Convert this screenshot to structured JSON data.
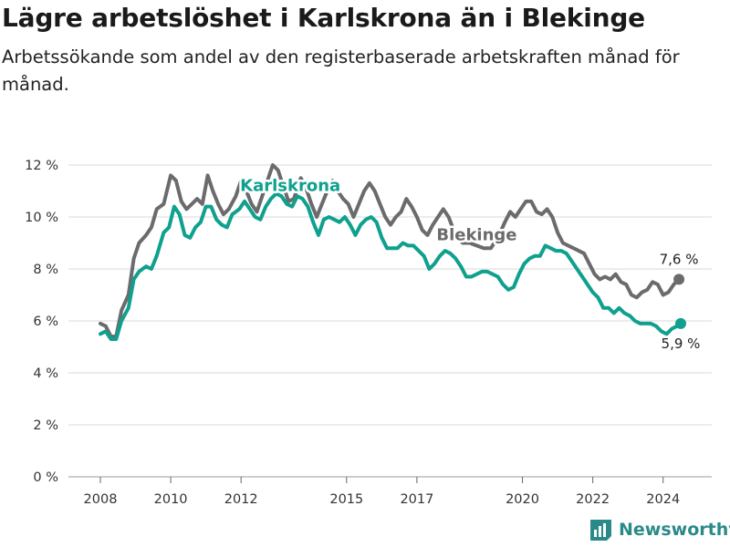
{
  "title": "Lägre arbetslöshet i Karlskrona än i Blekinge",
  "subtitle": "Arbetssökande som andel av den registerbaserade arbetskraften månad för månad.",
  "brand": {
    "name": "Newsworthy"
  },
  "colors": {
    "karlskrona": "#0fa08e",
    "blekinge": "#6b6b6e",
    "grid": "#d9d9d9"
  },
  "chart_data": {
    "type": "line",
    "title": "Lägre arbetslöshet i Karlskrona än i Blekinge",
    "subtitle": "Arbetssökande som andel av den registerbaserade arbetskraften månad för månad.",
    "xlabel": "",
    "ylabel": "",
    "y_range": [
      0,
      12
    ],
    "y_ticks": [
      {
        "value": 0,
        "label": "0 %"
      },
      {
        "value": 2,
        "label": "2 %"
      },
      {
        "value": 4,
        "label": "4 %"
      },
      {
        "value": 6,
        "label": "6 %"
      },
      {
        "value": 8,
        "label": "8 %"
      },
      {
        "value": 10,
        "label": "10 %"
      },
      {
        "value": 12,
        "label": "12 %"
      }
    ],
    "x_range": [
      2008.0,
      2024.5
    ],
    "x_ticks": [
      {
        "value": 2008,
        "label": "2008"
      },
      {
        "value": 2010,
        "label": "2010"
      },
      {
        "value": 2012,
        "label": "2012"
      },
      {
        "value": 2015,
        "label": "2015"
      },
      {
        "value": 2017,
        "label": "2017"
      },
      {
        "value": 2020,
        "label": "2020"
      },
      {
        "value": 2022,
        "label": "2022"
      },
      {
        "value": 2024,
        "label": "2024"
      }
    ],
    "grid": true,
    "series": [
      {
        "name": "Blekinge",
        "color": "#6b6b6e",
        "end_label": "7,6 %",
        "points": [
          [
            2008.0,
            5.9
          ],
          [
            2008.15,
            5.8
          ],
          [
            2008.3,
            5.4
          ],
          [
            2008.45,
            5.4
          ],
          [
            2008.6,
            6.4
          ],
          [
            2008.8,
            7.0
          ],
          [
            2008.95,
            8.4
          ],
          [
            2009.1,
            9.0
          ],
          [
            2009.3,
            9.3
          ],
          [
            2009.45,
            9.6
          ],
          [
            2009.6,
            10.3
          ],
          [
            2009.8,
            10.5
          ],
          [
            2010.0,
            11.6
          ],
          [
            2010.15,
            11.4
          ],
          [
            2010.3,
            10.6
          ],
          [
            2010.45,
            10.3
          ],
          [
            2010.6,
            10.5
          ],
          [
            2010.75,
            10.7
          ],
          [
            2010.9,
            10.5
          ],
          [
            2011.05,
            11.6
          ],
          [
            2011.2,
            11.0
          ],
          [
            2011.35,
            10.5
          ],
          [
            2011.5,
            10.1
          ],
          [
            2011.65,
            10.3
          ],
          [
            2011.85,
            10.8
          ],
          [
            2012.0,
            11.4
          ],
          [
            2012.15,
            11.0
          ],
          [
            2012.3,
            10.5
          ],
          [
            2012.45,
            10.2
          ],
          [
            2012.6,
            10.8
          ],
          [
            2012.75,
            11.4
          ],
          [
            2012.9,
            12.0
          ],
          [
            2013.05,
            11.8
          ],
          [
            2013.2,
            11.2
          ],
          [
            2013.35,
            10.6
          ],
          [
            2013.5,
            10.7
          ],
          [
            2013.7,
            11.5
          ],
          [
            2013.85,
            11.1
          ],
          [
            2014.0,
            10.5
          ],
          [
            2014.15,
            10.0
          ],
          [
            2014.3,
            10.5
          ],
          [
            2014.45,
            11.0
          ],
          [
            2014.6,
            11.4
          ],
          [
            2014.75,
            11.0
          ],
          [
            2014.9,
            10.7
          ],
          [
            2015.05,
            10.5
          ],
          [
            2015.2,
            10.0
          ],
          [
            2015.35,
            10.5
          ],
          [
            2015.5,
            11.0
          ],
          [
            2015.65,
            11.3
          ],
          [
            2015.8,
            11.0
          ],
          [
            2015.95,
            10.5
          ],
          [
            2016.1,
            10.0
          ],
          [
            2016.25,
            9.7
          ],
          [
            2016.4,
            10.0
          ],
          [
            2016.55,
            10.2
          ],
          [
            2016.7,
            10.7
          ],
          [
            2016.85,
            10.4
          ],
          [
            2017.0,
            10.0
          ],
          [
            2017.15,
            9.5
          ],
          [
            2017.3,
            9.3
          ],
          [
            2017.45,
            9.7
          ],
          [
            2017.6,
            10.0
          ],
          [
            2017.75,
            10.3
          ],
          [
            2017.9,
            10.0
          ],
          [
            2018.1,
            9.3
          ],
          [
            2018.3,
            9.0
          ],
          [
            2018.5,
            9.0
          ],
          [
            2018.7,
            8.9
          ],
          [
            2018.9,
            8.8
          ],
          [
            2019.1,
            8.8
          ],
          [
            2019.3,
            9.2
          ],
          [
            2019.5,
            9.8
          ],
          [
            2019.65,
            10.2
          ],
          [
            2019.8,
            10.0
          ],
          [
            2019.95,
            10.3
          ],
          [
            2020.1,
            10.6
          ],
          [
            2020.25,
            10.6
          ],
          [
            2020.4,
            10.2
          ],
          [
            2020.55,
            10.1
          ],
          [
            2020.7,
            10.3
          ],
          [
            2020.85,
            10.0
          ],
          [
            2021.0,
            9.4
          ],
          [
            2021.15,
            9.0
          ],
          [
            2021.3,
            8.9
          ],
          [
            2021.45,
            8.8
          ],
          [
            2021.6,
            8.7
          ],
          [
            2021.75,
            8.6
          ],
          [
            2021.9,
            8.2
          ],
          [
            2022.05,
            7.8
          ],
          [
            2022.2,
            7.6
          ],
          [
            2022.35,
            7.7
          ],
          [
            2022.5,
            7.6
          ],
          [
            2022.65,
            7.8
          ],
          [
            2022.8,
            7.5
          ],
          [
            2022.95,
            7.4
          ],
          [
            2023.1,
            7.0
          ],
          [
            2023.25,
            6.9
          ],
          [
            2023.4,
            7.1
          ],
          [
            2023.55,
            7.2
          ],
          [
            2023.7,
            7.5
          ],
          [
            2023.85,
            7.4
          ],
          [
            2024.0,
            7.0
          ],
          [
            2024.15,
            7.1
          ],
          [
            2024.3,
            7.4
          ],
          [
            2024.45,
            7.6
          ]
        ]
      },
      {
        "name": "Karlskrona",
        "color": "#0fa08e",
        "end_label": "5,9 %",
        "points": [
          [
            2008.0,
            5.5
          ],
          [
            2008.15,
            5.6
          ],
          [
            2008.3,
            5.3
          ],
          [
            2008.45,
            5.3
          ],
          [
            2008.6,
            6.0
          ],
          [
            2008.8,
            6.5
          ],
          [
            2008.95,
            7.6
          ],
          [
            2009.1,
            7.9
          ],
          [
            2009.3,
            8.1
          ],
          [
            2009.45,
            8.0
          ],
          [
            2009.6,
            8.5
          ],
          [
            2009.8,
            9.4
          ],
          [
            2009.95,
            9.6
          ],
          [
            2010.1,
            10.4
          ],
          [
            2010.25,
            10.1
          ],
          [
            2010.4,
            9.3
          ],
          [
            2010.55,
            9.2
          ],
          [
            2010.7,
            9.6
          ],
          [
            2010.85,
            9.8
          ],
          [
            2011.0,
            10.4
          ],
          [
            2011.15,
            10.4
          ],
          [
            2011.3,
            9.9
          ],
          [
            2011.45,
            9.7
          ],
          [
            2011.6,
            9.6
          ],
          [
            2011.75,
            10.1
          ],
          [
            2011.95,
            10.3
          ],
          [
            2012.1,
            10.6
          ],
          [
            2012.25,
            10.3
          ],
          [
            2012.4,
            10.0
          ],
          [
            2012.55,
            9.9
          ],
          [
            2012.7,
            10.4
          ],
          [
            2012.85,
            10.7
          ],
          [
            2013.0,
            10.9
          ],
          [
            2013.15,
            10.8
          ],
          [
            2013.3,
            10.5
          ],
          [
            2013.45,
            10.4
          ],
          [
            2013.6,
            10.8
          ],
          [
            2013.75,
            10.7
          ],
          [
            2013.9,
            10.4
          ],
          [
            2014.05,
            9.8
          ],
          [
            2014.2,
            9.3
          ],
          [
            2014.35,
            9.9
          ],
          [
            2014.5,
            10.0
          ],
          [
            2014.65,
            9.9
          ],
          [
            2014.8,
            9.8
          ],
          [
            2014.95,
            10.0
          ],
          [
            2015.1,
            9.7
          ],
          [
            2015.25,
            9.3
          ],
          [
            2015.4,
            9.7
          ],
          [
            2015.55,
            9.9
          ],
          [
            2015.7,
            10.0
          ],
          [
            2015.85,
            9.8
          ],
          [
            2016.0,
            9.2
          ],
          [
            2016.15,
            8.8
          ],
          [
            2016.3,
            8.8
          ],
          [
            2016.45,
            8.8
          ],
          [
            2016.6,
            9.0
          ],
          [
            2016.75,
            8.9
          ],
          [
            2016.9,
            8.9
          ],
          [
            2017.05,
            8.7
          ],
          [
            2017.2,
            8.5
          ],
          [
            2017.35,
            8.0
          ],
          [
            2017.5,
            8.2
          ],
          [
            2017.65,
            8.5
          ],
          [
            2017.8,
            8.7
          ],
          [
            2017.95,
            8.6
          ],
          [
            2018.1,
            8.4
          ],
          [
            2018.25,
            8.1
          ],
          [
            2018.4,
            7.7
          ],
          [
            2018.55,
            7.7
          ],
          [
            2018.7,
            7.8
          ],
          [
            2018.85,
            7.9
          ],
          [
            2019.0,
            7.9
          ],
          [
            2019.15,
            7.8
          ],
          [
            2019.3,
            7.7
          ],
          [
            2019.45,
            7.4
          ],
          [
            2019.6,
            7.2
          ],
          [
            2019.75,
            7.3
          ],
          [
            2019.9,
            7.8
          ],
          [
            2020.05,
            8.2
          ],
          [
            2020.2,
            8.4
          ],
          [
            2020.35,
            8.5
          ],
          [
            2020.5,
            8.5
          ],
          [
            2020.65,
            8.9
          ],
          [
            2020.8,
            8.8
          ],
          [
            2020.95,
            8.7
          ],
          [
            2021.1,
            8.7
          ],
          [
            2021.25,
            8.6
          ],
          [
            2021.4,
            8.3
          ],
          [
            2021.55,
            8.0
          ],
          [
            2021.7,
            7.7
          ],
          [
            2021.85,
            7.4
          ],
          [
            2022.0,
            7.1
          ],
          [
            2022.15,
            6.9
          ],
          [
            2022.3,
            6.5
          ],
          [
            2022.45,
            6.5
          ],
          [
            2022.6,
            6.3
          ],
          [
            2022.75,
            6.5
          ],
          [
            2022.9,
            6.3
          ],
          [
            2023.05,
            6.2
          ],
          [
            2023.2,
            6.0
          ],
          [
            2023.35,
            5.9
          ],
          [
            2023.5,
            5.9
          ],
          [
            2023.65,
            5.9
          ],
          [
            2023.8,
            5.8
          ],
          [
            2023.95,
            5.6
          ],
          [
            2024.1,
            5.5
          ],
          [
            2024.25,
            5.7
          ],
          [
            2024.4,
            5.8
          ],
          [
            2024.5,
            5.9
          ]
        ]
      }
    ],
    "annotations": [
      {
        "text": "Karlskrona",
        "series": "Karlskrona",
        "at": [
          2013.4,
          11.0
        ]
      },
      {
        "text": "Blekinge",
        "series": "Blekinge",
        "at": [
          2018.7,
          9.1
        ]
      }
    ]
  }
}
